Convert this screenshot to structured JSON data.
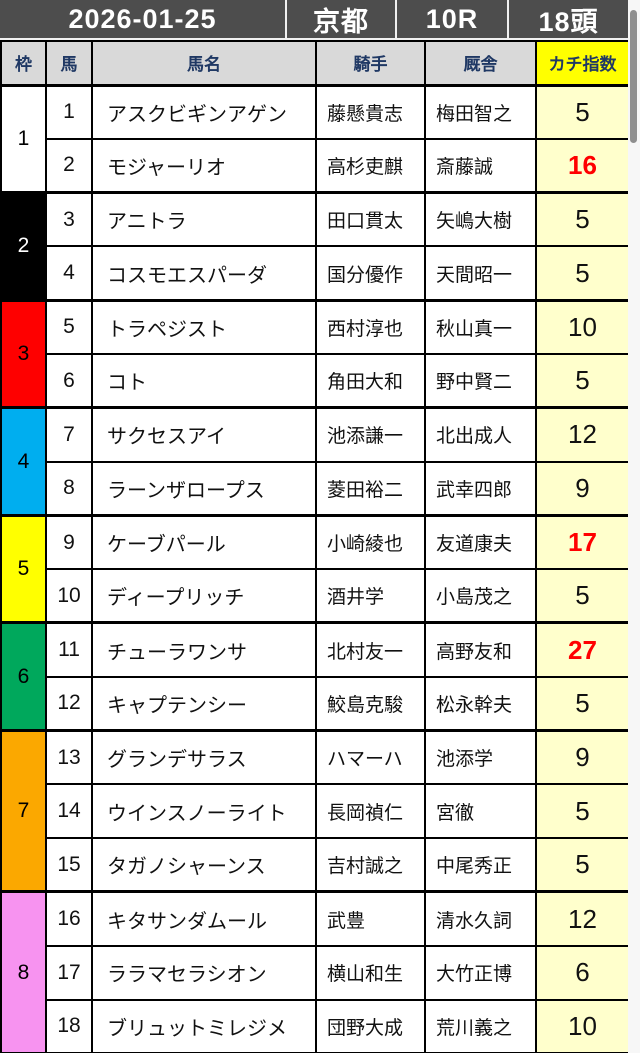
{
  "header": {
    "date": "2026-01-25",
    "track": "京都",
    "race": "10R",
    "heads": "18頭"
  },
  "columns": [
    "枠",
    "馬",
    "馬名",
    "騎手",
    "厩舎",
    "カチ指数"
  ],
  "colors": {
    "topbar_bg": "#4d4d4d",
    "column_header_bg": "#d9d9d9",
    "column_header_text": "#1f3864",
    "index_header_bg": "#ffff00",
    "index_cell_bg": "#ffffcc",
    "highlight_index_text": "#ff0000"
  },
  "frame_colors": {
    "1": {
      "color": "#ffffff",
      "text": "#000000"
    },
    "2": {
      "color": "#000000",
      "text": "#ffffff"
    },
    "3": {
      "color": "#fe0000",
      "text": "#000000"
    },
    "4": {
      "color": "#00aeef",
      "text": "#000000"
    },
    "5": {
      "color": "#ffff00",
      "text": "#000000"
    },
    "6": {
      "color": "#00a85c",
      "text": "#000000"
    },
    "7": {
      "color": "#fba800",
      "text": "#000000"
    },
    "8": {
      "color": "#f793f0",
      "text": "#000000"
    }
  },
  "rows": [
    {
      "frame": 1,
      "num": "1",
      "name": "アスクビギンアゲン",
      "jockey": "藤懸貴志",
      "stable": "梅田智之",
      "index": "5",
      "red": false
    },
    {
      "frame": 1,
      "num": "2",
      "name": "モジャーリオ",
      "jockey": "高杉吏麒",
      "stable": "斎藤誠",
      "index": "16",
      "red": true
    },
    {
      "frame": 2,
      "num": "3",
      "name": "アニトラ",
      "jockey": "田口貫太",
      "stable": "矢嶋大樹",
      "index": "5",
      "red": false
    },
    {
      "frame": 2,
      "num": "4",
      "name": "コスモエスパーダ",
      "jockey": "国分優作",
      "stable": "天間昭一",
      "index": "5",
      "red": false
    },
    {
      "frame": 3,
      "num": "5",
      "name": "トラペジスト",
      "jockey": "西村淳也",
      "stable": "秋山真一",
      "index": "10",
      "red": false
    },
    {
      "frame": 3,
      "num": "6",
      "name": "コト",
      "jockey": "角田大和",
      "stable": "野中賢二",
      "index": "5",
      "red": false
    },
    {
      "frame": 4,
      "num": "7",
      "name": "サクセスアイ",
      "jockey": "池添謙一",
      "stable": "北出成人",
      "index": "12",
      "red": false
    },
    {
      "frame": 4,
      "num": "8",
      "name": "ラーンザロープス",
      "jockey": "菱田裕二",
      "stable": "武幸四郎",
      "index": "9",
      "red": false
    },
    {
      "frame": 5,
      "num": "9",
      "name": "ケーブパール",
      "jockey": "小崎綾也",
      "stable": "友道康夫",
      "index": "17",
      "red": true
    },
    {
      "frame": 5,
      "num": "10",
      "name": "ディープリッチ",
      "jockey": "酒井学",
      "stable": "小島茂之",
      "index": "5",
      "red": false
    },
    {
      "frame": 6,
      "num": "11",
      "name": "チューラワンサ",
      "jockey": "北村友一",
      "stable": "高野友和",
      "index": "27",
      "red": true
    },
    {
      "frame": 6,
      "num": "12",
      "name": "キャプテンシー",
      "jockey": "鮫島克駿",
      "stable": "松永幹夫",
      "index": "5",
      "red": false
    },
    {
      "frame": 7,
      "num": "13",
      "name": "グランデサラス",
      "jockey": "ハマーハ",
      "stable": "池添学",
      "index": "9",
      "red": false
    },
    {
      "frame": 7,
      "num": "14",
      "name": "ウインスノーライト",
      "jockey": "長岡禎仁",
      "stable": "宮徹",
      "index": "5",
      "red": false
    },
    {
      "frame": 7,
      "num": "15",
      "name": "タガノシャーンス",
      "jockey": "吉村誠之",
      "stable": "中尾秀正",
      "index": "5",
      "red": false
    },
    {
      "frame": 8,
      "num": "16",
      "name": "キタサンダムール",
      "jockey": "武豊",
      "stable": "清水久詞",
      "index": "12",
      "red": false
    },
    {
      "frame": 8,
      "num": "17",
      "name": "ララマセラシオン",
      "jockey": "横山和生",
      "stable": "大竹正博",
      "index": "6",
      "red": false
    },
    {
      "frame": 8,
      "num": "18",
      "name": "ブリュットミレジメ",
      "jockey": "団野大成",
      "stable": "荒川義之",
      "index": "10",
      "red": false
    }
  ]
}
